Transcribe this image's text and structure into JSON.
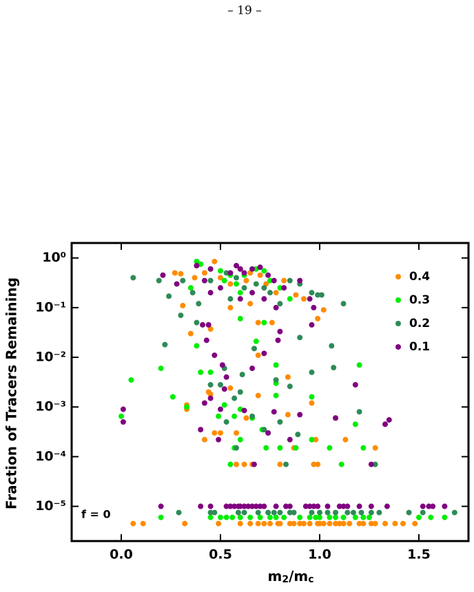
{
  "page_number": "– 19 –",
  "chart_data": {
    "type": "scatter",
    "x_label": [
      "m",
      "2",
      "/m",
      "c"
    ],
    "y_label": "Fraction of Tracers Remaining",
    "annotation": "f = 0",
    "xlim": [
      -0.25,
      1.75
    ],
    "xticks": [
      {
        "value": 0,
        "label": "0.0"
      },
      0.5,
      {
        "value": 1,
        "label": "1.0"
      },
      1.5
    ],
    "ylim": [
      2e-06,
      2
    ],
    "log_y": true,
    "yticks": [
      {
        "value": 1,
        "label": "10⁰"
      },
      {
        "value": 0.1,
        "label": "10⁻¹"
      },
      {
        "value": 0.01,
        "label": "10⁻²"
      },
      {
        "value": 0.001,
        "label": "10⁻³"
      },
      {
        "value": 0.0001,
        "label": "10⁻⁴"
      },
      {
        "value": 1e-05,
        "label": "10⁻⁵"
      }
    ],
    "legend": "upper right",
    "series": [
      {
        "name": "0.4",
        "color": "#ff8c00",
        "x": [
          0.27,
          0.3,
          0.37,
          0.42,
          0.47,
          0.5,
          0.55,
          0.6,
          0.63,
          0.65,
          0.7,
          0.73,
          0.78,
          0.82,
          0.88,
          0.92,
          0.99,
          1.02,
          0.55,
          0.65,
          0.31,
          0.35,
          0.45,
          0.69,
          0.69,
          0.76,
          0.84,
          0.55,
          0.44,
          0.45,
          0.33,
          0.33,
          0.69,
          0.84,
          0.42,
          0.5,
          0.47,
          0.58,
          0.63,
          0.87,
          0.98,
          1.08,
          1.13,
          1.28,
          0.96,
          0.58,
          0.62,
          0.66,
          0.8,
          0.97,
          0.99,
          0.06,
          0.11,
          0.32,
          0.49,
          0.6,
          0.65,
          0.69,
          0.72,
          0.75,
          0.79,
          0.8,
          0.85,
          0.87,
          0.9,
          0.92,
          0.95,
          0.99,
          1.0,
          1.02,
          1.05,
          1.08,
          1.1,
          1.12,
          1.15,
          1.2,
          1.22,
          1.26,
          1.28,
          1.33,
          1.38,
          1.42,
          1.48
        ],
        "values": [
          0.5,
          0.48,
          0.4,
          0.5,
          0.85,
          0.4,
          0.3,
          0.6,
          0.35,
          0.5,
          0.45,
          0.3,
          0.2,
          0.35,
          0.18,
          0.15,
          0.06,
          0.09,
          0.1,
          0.12,
          0.11,
          0.03,
          0.037,
          0.05,
          0.011,
          0.05,
          0.004,
          0.0024,
          0.002,
          0.0018,
          0.0009,
          0.0011,
          0.0017,
          0.0007,
          0.00022,
          0.0003,
          0.0003,
          0.0003,
          0.0006,
          0.00015,
          0.00022,
          0.0006,
          0.00022,
          0.00015,
          0.0012,
          7e-05,
          7e-05,
          7e-05,
          7e-05,
          7e-05,
          7e-05,
          4.5e-06,
          4.5e-06,
          4.5e-06,
          4.5e-06,
          4.5e-06,
          4.5e-06,
          4.5e-06,
          4.5e-06,
          4.5e-06,
          4.5e-06,
          4.5e-06,
          4.5e-06,
          4.5e-06,
          4.5e-06,
          4.5e-06,
          4.5e-06,
          4.5e-06,
          4.5e-06,
          4.5e-06,
          4.5e-06,
          4.5e-06,
          4.5e-06,
          4.5e-06,
          4.5e-06,
          4.5e-06,
          4.5e-06,
          4.5e-06,
          4.5e-06,
          4.5e-06,
          4.5e-06,
          4.5e-06,
          4.5e-06
        ]
      },
      {
        "name": "0.3",
        "color": "#00ee00",
        "x": [
          0.38,
          0.4,
          0.45,
          0.5,
          0.55,
          0.58,
          0.62,
          0.68,
          0.72,
          0.75,
          0.6,
          0.8,
          0.85,
          0.52,
          0.35,
          0.2,
          0.26,
          0.33,
          0.38,
          0.4,
          0.45,
          0.6,
          0.68,
          0.72,
          0.78,
          0.78,
          0.78,
          0.96,
          1.2,
          0.05,
          0.0,
          0.49,
          0.52,
          0.57,
          0.6,
          0.66,
          0.71,
          0.96,
          1.05,
          1.18,
          1.22,
          0.57,
          0.73,
          0.8,
          0.88,
          0.6,
          0.55,
          1.11,
          0.2,
          0.45,
          0.5,
          0.53,
          0.56,
          0.6,
          0.65,
          0.7,
          0.75,
          0.78,
          0.82,
          0.9,
          0.95,
          0.98,
          1.0,
          1.05,
          1.08,
          1.12,
          1.18,
          1.22,
          1.25,
          1.5,
          1.56,
          1.63
        ],
        "values": [
          0.85,
          0.75,
          0.6,
          0.55,
          0.45,
          0.3,
          0.45,
          0.6,
          0.55,
          0.35,
          0.2,
          0.25,
          0.15,
          0.35,
          0.25,
          0.006,
          0.0016,
          0.001,
          0.017,
          0.005,
          0.005,
          0.06,
          0.021,
          0.05,
          0.007,
          0.003,
          0.0017,
          0.0016,
          0.007,
          0.0035,
          0.00065,
          0.00065,
          0.0011,
          0.00065,
          0.0009,
          0.0006,
          0.00035,
          0.00022,
          0.00015,
          0.00045,
          0.00015,
          0.00015,
          0.00015,
          0.00015,
          0.00015,
          0.00022,
          7e-05,
          7e-05,
          6e-06,
          6e-06,
          6e-06,
          6e-06,
          6e-06,
          6e-06,
          6e-06,
          6e-06,
          6e-06,
          6e-06,
          6e-06,
          6e-06,
          6e-06,
          6e-06,
          6e-06,
          6e-06,
          6e-06,
          6e-06,
          6e-06,
          6e-06,
          6e-06,
          6e-06,
          6e-06,
          6e-06
        ]
      },
      {
        "name": "0.2",
        "color": "#2e8b57",
        "x": [
          0.06,
          0.19,
          0.31,
          0.36,
          0.39,
          0.45,
          0.53,
          0.58,
          0.62,
          0.68,
          0.72,
          0.75,
          0.8,
          0.85,
          0.9,
          0.96,
          0.99,
          1.01,
          1.12,
          0.24,
          0.3,
          0.55,
          0.22,
          0.38,
          0.45,
          0.5,
          0.52,
          0.61,
          0.6,
          0.57,
          0.67,
          0.78,
          0.85,
          0.9,
          0.96,
          1.06,
          1.07,
          1.2,
          0.53,
          0.66,
          0.72,
          0.89,
          0.58,
          0.8,
          0.83,
          1.28,
          0.29,
          0.45,
          0.47,
          0.59,
          0.62,
          0.69,
          0.74,
          0.77,
          0.8,
          0.85,
          0.87,
          0.96,
          1.0,
          1.04,
          1.08,
          1.14,
          1.17,
          1.21,
          1.26,
          1.3,
          1.45,
          1.52,
          1.68
        ],
        "values": [
          0.4,
          0.35,
          0.35,
          0.2,
          0.12,
          0.35,
          0.5,
          0.4,
          0.25,
          0.3,
          0.25,
          0.2,
          0.12,
          0.35,
          0.3,
          0.2,
          0.18,
          0.18,
          0.12,
          0.17,
          0.07,
          0.15,
          0.018,
          0.05,
          0.0028,
          0.0028,
          0.006,
          0.0045,
          0.002,
          0.0015,
          0.015,
          0.0035,
          0.0026,
          0.025,
          0.005,
          0.017,
          0.0062,
          0.0008,
          0.0005,
          0.00065,
          0.00035,
          0.00028,
          0.00015,
          0.0005,
          7e-05,
          7e-05,
          7.5e-06,
          7.5e-06,
          7.5e-06,
          7.5e-06,
          7.5e-06,
          7.5e-06,
          7.5e-06,
          7.5e-06,
          7.5e-06,
          7.5e-06,
          7.5e-06,
          7.5e-06,
          7.5e-06,
          7.5e-06,
          7.5e-06,
          7.5e-06,
          7.5e-06,
          7.5e-06,
          7.5e-06,
          7.5e-06,
          7.5e-06,
          7.5e-06,
          7.5e-06
        ]
      },
      {
        "name": "0.1",
        "color": "#800080",
        "x": [
          0.21,
          0.28,
          0.38,
          0.42,
          0.45,
          0.5,
          0.55,
          0.58,
          0.6,
          0.62,
          0.66,
          0.7,
          0.74,
          0.77,
          0.82,
          0.9,
          0.95,
          0.97,
          0.6,
          0.66,
          0.72,
          0.78,
          0.45,
          0.41,
          0.44,
          0.43,
          0.47,
          0.51,
          0.53,
          0.66,
          0.72,
          0.8,
          0.79,
          0.96,
          0.42,
          0.45,
          0.52,
          0.62,
          0.77,
          0.9,
          0.5,
          0.4,
          0.49,
          0.74,
          0.85,
          1.18,
          1.33,
          1.35,
          0.01,
          0.01,
          1.08,
          0.67,
          1.26,
          0.2,
          0.4,
          0.45,
          0.53,
          0.55,
          0.57,
          0.59,
          0.6,
          0.62,
          0.64,
          0.66,
          0.68,
          0.7,
          0.72,
          0.78,
          0.83,
          0.85,
          0.93,
          0.95,
          0.97,
          0.99,
          1.04,
          1.1,
          1.12,
          1.14,
          1.2,
          1.26,
          1.34,
          1.52,
          1.55,
          1.57,
          1.63
        ],
        "values": [
          0.45,
          0.3,
          0.7,
          0.35,
          0.6,
          0.25,
          0.5,
          0.7,
          0.6,
          0.5,
          0.6,
          0.65,
          0.45,
          0.35,
          0.25,
          0.35,
          0.15,
          0.1,
          0.15,
          0.2,
          0.15,
          0.1,
          0.2,
          0.045,
          0.045,
          0.022,
          0.011,
          0.007,
          0.004,
          0.006,
          0.012,
          0.033,
          0.022,
          0.045,
          0.0012,
          0.0015,
          0.0023,
          0.00085,
          0.0008,
          0.0007,
          0.0009,
          0.00035,
          0.00022,
          0.0003,
          0.00022,
          0.0028,
          0.00045,
          0.00055,
          0.0009,
          0.0005,
          0.0006,
          7e-05,
          7e-05,
          1e-05,
          1e-05,
          1e-05,
          1e-05,
          1e-05,
          1e-05,
          1e-05,
          1e-05,
          1e-05,
          1e-05,
          1e-05,
          1e-05,
          1e-05,
          1e-05,
          1e-05,
          1e-05,
          1e-05,
          1e-05,
          1e-05,
          1e-05,
          1e-05,
          1e-05,
          1e-05,
          1e-05,
          1e-05,
          1e-05,
          1e-05,
          1e-05,
          1e-05,
          1e-05,
          1e-05,
          1e-05
        ]
      }
    ]
  }
}
